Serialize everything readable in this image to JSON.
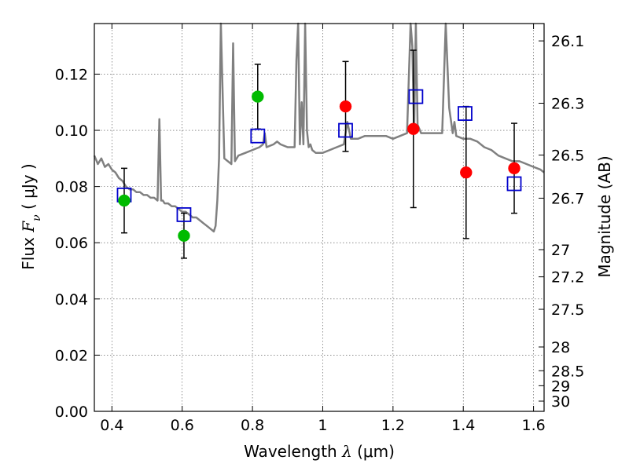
{
  "chart_data": {
    "type": "scatter",
    "xlabel": "Wavelength  λ (μm)",
    "xlabel_parts": {
      "pre": "Wavelength  ",
      "sym": "λ",
      "post": " (μm)"
    },
    "ylabel": "Flux  Fν  ( μJy )",
    "ylabel_parts": {
      "pre": "Flux  ",
      "sym": "F",
      "sub": "ν",
      "post": "  ( μJy )"
    },
    "y2label": "Magnitude (AB)",
    "xlim": [
      0.35,
      1.63
    ],
    "ylim": [
      0.0,
      0.138
    ],
    "grid": true,
    "x_ticks": [
      0.4,
      0.6,
      0.8,
      1.0,
      1.2,
      1.4,
      1.6
    ],
    "x_tick_labels": [
      "0.4",
      "0.6",
      "0.8",
      "1",
      "1.2",
      "1.4",
      "1.6"
    ],
    "y_ticks": [
      0.0,
      0.02,
      0.04,
      0.06,
      0.08,
      0.1,
      0.12
    ],
    "y_tick_labels": [
      "0.00",
      "0.02",
      "0.04",
      "0.06",
      "0.08",
      "0.10",
      "0.12"
    ],
    "mag_ticks": [
      26.1,
      26.3,
      26.5,
      26.7,
      27,
      27.2,
      27.5,
      28,
      28.5,
      29,
      30
    ],
    "mag_tick_labels": [
      "26.1",
      "26.3",
      "26.5",
      "26.7",
      "27",
      "27.2",
      "27.5",
      "28",
      "28.5",
      "29",
      "30"
    ],
    "series": [
      {
        "name": "Model SED",
        "kind": "line",
        "color": "#808080",
        "x": [
          0.35,
          0.36,
          0.37,
          0.38,
          0.39,
          0.4,
          0.41,
          0.42,
          0.43,
          0.44,
          0.45,
          0.46,
          0.47,
          0.48,
          0.49,
          0.5,
          0.51,
          0.52,
          0.53,
          0.535,
          0.54,
          0.545,
          0.55,
          0.56,
          0.57,
          0.58,
          0.59,
          0.6,
          0.61,
          0.62,
          0.63,
          0.64,
          0.65,
          0.66,
          0.67,
          0.68,
          0.69,
          0.695,
          0.7,
          0.705,
          0.71,
          0.72,
          0.74,
          0.745,
          0.75,
          0.76,
          0.78,
          0.8,
          0.82,
          0.83,
          0.835,
          0.84,
          0.86,
          0.87,
          0.88,
          0.9,
          0.92,
          0.925,
          0.93,
          0.935,
          0.94,
          0.945,
          0.95,
          0.955,
          0.96,
          0.965,
          0.97,
          0.98,
          1.0,
          1.02,
          1.04,
          1.06,
          1.07,
          1.08,
          1.1,
          1.12,
          1.14,
          1.16,
          1.18,
          1.2,
          1.22,
          1.24,
          1.25,
          1.255,
          1.26,
          1.265,
          1.27,
          1.28,
          1.3,
          1.32,
          1.34,
          1.35,
          1.36,
          1.37,
          1.375,
          1.38,
          1.4,
          1.42,
          1.44,
          1.46,
          1.48,
          1.5,
          1.52,
          1.54,
          1.56,
          1.58,
          1.6,
          1.62,
          1.63
        ],
        "y": [
          0.091,
          0.088,
          0.09,
          0.087,
          0.088,
          0.086,
          0.085,
          0.083,
          0.082,
          0.08,
          0.079,
          0.079,
          0.078,
          0.078,
          0.077,
          0.077,
          0.076,
          0.076,
          0.075,
          0.104,
          0.075,
          0.075,
          0.074,
          0.074,
          0.073,
          0.073,
          0.072,
          0.071,
          0.071,
          0.07,
          0.069,
          0.069,
          0.068,
          0.067,
          0.066,
          0.065,
          0.064,
          0.066,
          0.075,
          0.09,
          0.138,
          0.09,
          0.088,
          0.131,
          0.089,
          0.091,
          0.092,
          0.093,
          0.094,
          0.095,
          0.099,
          0.094,
          0.095,
          0.096,
          0.095,
          0.094,
          0.094,
          0.125,
          0.138,
          0.095,
          0.11,
          0.095,
          0.138,
          0.1,
          0.094,
          0.095,
          0.093,
          0.092,
          0.092,
          0.093,
          0.094,
          0.095,
          0.103,
          0.097,
          0.097,
          0.098,
          0.098,
          0.098,
          0.098,
          0.097,
          0.098,
          0.099,
          0.138,
          0.13,
          0.099,
          0.138,
          0.102,
          0.099,
          0.099,
          0.099,
          0.099,
          0.138,
          0.108,
          0.099,
          0.103,
          0.098,
          0.097,
          0.097,
          0.096,
          0.094,
          0.093,
          0.091,
          0.09,
          0.089,
          0.089,
          0.088,
          0.087,
          0.086,
          0.085
        ]
      },
      {
        "name": "Blue squares",
        "kind": "open-square",
        "color": "#0000cc",
        "x": [
          0.435,
          0.605,
          0.815,
          1.065,
          1.265,
          1.405,
          1.545
        ],
        "y": [
          0.077,
          0.07,
          0.098,
          0.1,
          0.112,
          0.106,
          0.081
        ]
      },
      {
        "name": "Green points",
        "kind": "filled-circle",
        "color": "#00bb00",
        "x": [
          0.435,
          0.605,
          0.815
        ],
        "y": [
          0.075,
          0.0625,
          0.112
        ],
        "err": [
          0.0115,
          0.008,
          0.0115
        ]
      },
      {
        "name": "Red points",
        "kind": "filled-circle",
        "color": "#ff0000",
        "x": [
          1.065,
          1.258,
          1.408,
          1.545
        ],
        "y": [
          0.1085,
          0.1005,
          0.085,
          0.0865
        ],
        "err": [
          0.016,
          0.028,
          0.0235,
          0.016
        ]
      }
    ]
  }
}
